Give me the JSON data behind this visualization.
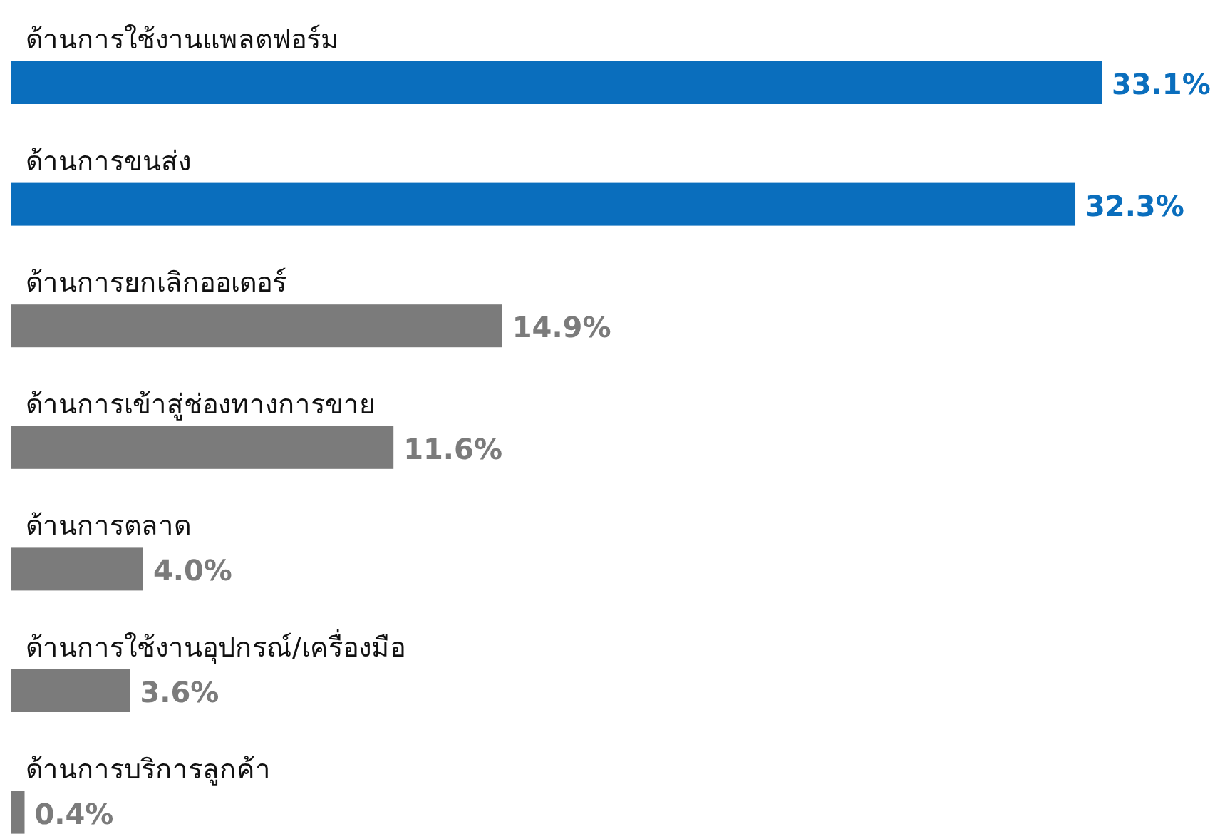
{
  "chart_data": {
    "type": "bar",
    "orientation": "horizontal",
    "categories": [
      "ด้านการใช้งานแพลตฟอร์ม",
      "ด้านการขนส่ง",
      "ด้านการยกเลิกออเดอร์",
      "ด้านการเข้าสู่ช่องทางการขาย",
      "ด้านการตลาด",
      "ด้านการใช้งานอุปกรณ์/เครื่องมือ",
      "ด้านการบริการลูกค้า"
    ],
    "values": [
      33.1,
      32.3,
      14.9,
      11.6,
      4.0,
      3.6,
      0.4
    ],
    "colors": [
      "#0a6ebd",
      "#0a6ebd",
      "#7b7b7b",
      "#7b7b7b",
      "#7b7b7b",
      "#7b7b7b",
      "#7b7b7b"
    ],
    "value_labels": [
      "33.1%",
      "32.3%",
      "14.9%",
      "11.6%",
      "4.0%",
      "3.6%",
      "0.4%"
    ]
  }
}
